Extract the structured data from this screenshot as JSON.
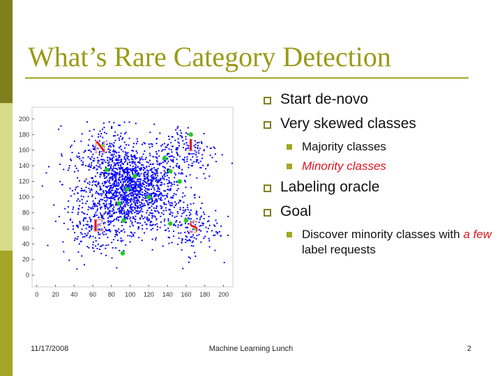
{
  "slide": {
    "title": "What’s Rare Category Detection"
  },
  "bullets": {
    "start": "Start de-novo",
    "skewed": "Very skewed classes",
    "majority": "Majority classes",
    "minority": "Minority classes",
    "oracle": "Labeling oracle",
    "goal": "Goal",
    "discover_pre": "Discover minority classes with ",
    "discover_em": "a few",
    "discover_post": " label requests"
  },
  "footer": {
    "date": "11/17/2008",
    "center": "Machine Learning Lunch",
    "page": "2"
  },
  "colors": {
    "accent": "#9a9a16",
    "minority_text": "#e0141d",
    "points": "#0000ff",
    "queries": "#22cc22",
    "letters": "#e0141d"
  },
  "chart_data": {
    "type": "scatter",
    "xlim": [
      -5,
      210
    ],
    "ylim": [
      -15,
      215
    ],
    "x_ticks": [
      0,
      20,
      40,
      60,
      80,
      100,
      120,
      140,
      160,
      180,
      200
    ],
    "y_ticks": [
      0,
      20,
      40,
      60,
      80,
      100,
      120,
      140,
      160,
      180,
      200
    ],
    "grid": false,
    "series": [
      {
        "color": "#0000ff",
        "description_only": false,
        "clusters": [
          {
            "center": [
              100,
              110
            ],
            "spread": 25,
            "count": 1500
          },
          {
            "center": [
              70,
              158
            ],
            "spread": 18,
            "count": 180
          },
          {
            "center": [
              160,
              158
            ],
            "spread": 18,
            "count": 180
          },
          {
            "center": [
              62,
              62
            ],
            "spread": 18,
            "count": 180
          },
          {
            "center": [
              160,
              62
            ],
            "spread": 18,
            "count": 180
          }
        ]
      },
      {
        "color": "#22cc22",
        "points": [
          [
            165,
            180
          ],
          [
            70,
            165
          ],
          [
            137,
            150
          ],
          [
            75,
            135
          ],
          [
            143,
            133
          ],
          [
            105,
            127
          ],
          [
            153,
            120
          ],
          [
            97,
            110
          ],
          [
            120,
            100
          ],
          [
            88,
            92
          ],
          [
            93,
            70
          ],
          [
            160,
            70
          ],
          [
            143,
            66
          ],
          [
            63,
            60
          ],
          [
            170,
            60
          ],
          [
            92,
            28
          ]
        ]
      }
    ],
    "annotations": [
      {
        "text": "N",
        "x": 68,
        "y": 164
      },
      {
        "text": "I",
        "x": 165,
        "y": 167
      },
      {
        "text": "E",
        "x": 66,
        "y": 64
      },
      {
        "text": "S",
        "x": 168,
        "y": 62
      }
    ]
  }
}
